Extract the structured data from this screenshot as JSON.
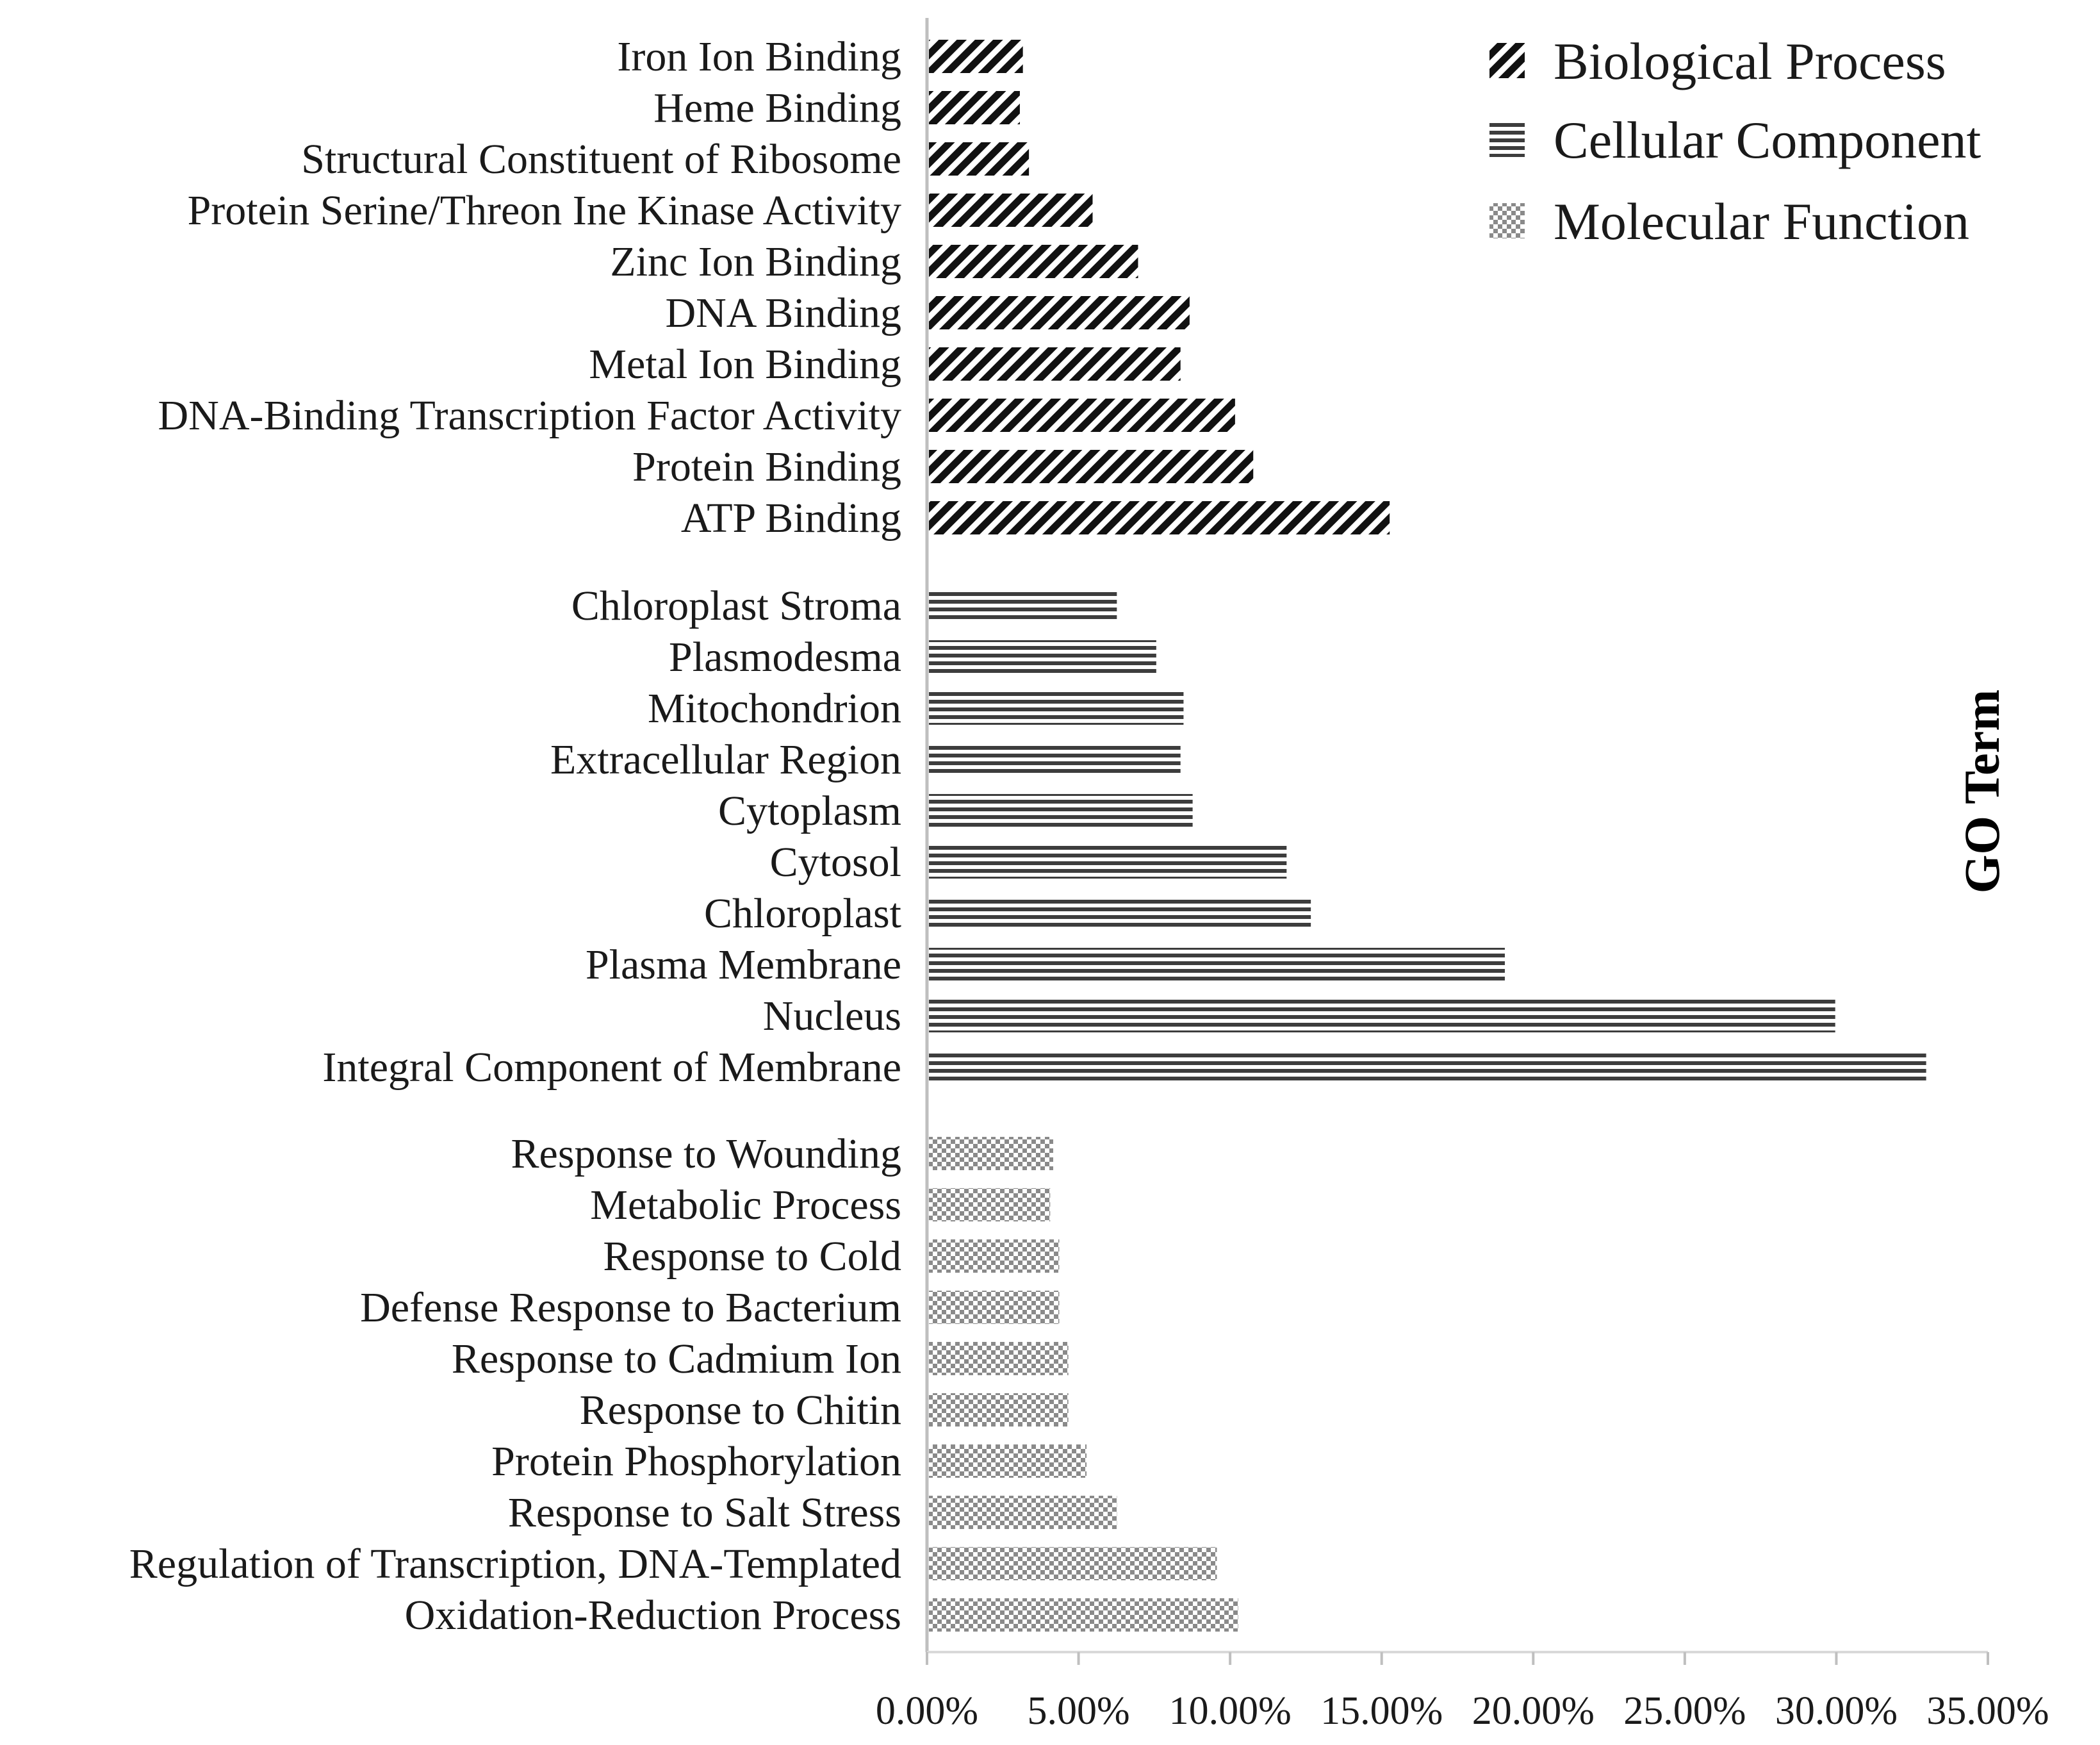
{
  "chart_data": {
    "type": "bar",
    "orientation": "horizontal",
    "ylabel": "GO Term",
    "xlabel": "",
    "xlim": [
      0,
      0.35
    ],
    "xticks": [
      "0.00%",
      "5.00%",
      "10.00%",
      "15.00%",
      "20.00%",
      "25.00%",
      "30.00%",
      "35.00%"
    ],
    "grid": false,
    "legend_position": "top-right",
    "legend": [
      "Biological Process",
      "Cellular Component",
      "Molecular Function"
    ],
    "groups": [
      {
        "legend_index": 0,
        "pattern": "diagonal",
        "items": [
          {
            "label": "Iron Ion Binding",
            "value": 0.031
          },
          {
            "label": "Heme Binding",
            "value": 0.03
          },
          {
            "label": "Structural Constituent of Ribosome",
            "value": 0.033
          },
          {
            "label": "Protein Serine/Threon Ine Kinase Activity",
            "value": 0.054
          },
          {
            "label": "Zinc Ion Binding",
            "value": 0.069
          },
          {
            "label": "DNA Binding",
            "value": 0.086
          },
          {
            "label": "Metal Ion Binding",
            "value": 0.083
          },
          {
            "label": "DNA-Binding Transcription Factor Activity",
            "value": 0.101
          },
          {
            "label": "Protein Binding",
            "value": 0.107
          },
          {
            "label": "ATP Binding",
            "value": 0.152
          }
        ]
      },
      {
        "legend_index": 1,
        "pattern": "horizontal",
        "items": [
          {
            "label": "Chloroplast Stroma",
            "value": 0.062
          },
          {
            "label": "Plasmodesma",
            "value": 0.075
          },
          {
            "label": "Mitochondrion",
            "value": 0.084
          },
          {
            "label": "Extracellular Region",
            "value": 0.083
          },
          {
            "label": "Cytoplasm",
            "value": 0.087
          },
          {
            "label": "Cytosol",
            "value": 0.118
          },
          {
            "label": "Chloroplast",
            "value": 0.126
          },
          {
            "label": "Plasma Membrane",
            "value": 0.19
          },
          {
            "label": "Nucleus",
            "value": 0.299
          },
          {
            "label": "Integral Component of Membrane",
            "value": 0.329
          }
        ]
      },
      {
        "legend_index": 2,
        "pattern": "crosshatch",
        "items": [
          {
            "label": "Response to Wounding",
            "value": 0.041
          },
          {
            "label": "Metabolic Process",
            "value": 0.04
          },
          {
            "label": "Response to Cold",
            "value": 0.043
          },
          {
            "label": "Defense Response to Bacterium",
            "value": 0.043
          },
          {
            "label": "Response to Cadmium Ion",
            "value": 0.046
          },
          {
            "label": "Response to Chitin",
            "value": 0.046
          },
          {
            "label": "Protein Phosphorylation",
            "value": 0.052
          },
          {
            "label": "Response to Salt Stress",
            "value": 0.062
          },
          {
            "label": "Regulation of Transcription, DNA-Templated",
            "value": 0.095
          },
          {
            "label": "Oxidation-Reduction Process",
            "value": 0.102
          }
        ]
      }
    ]
  }
}
